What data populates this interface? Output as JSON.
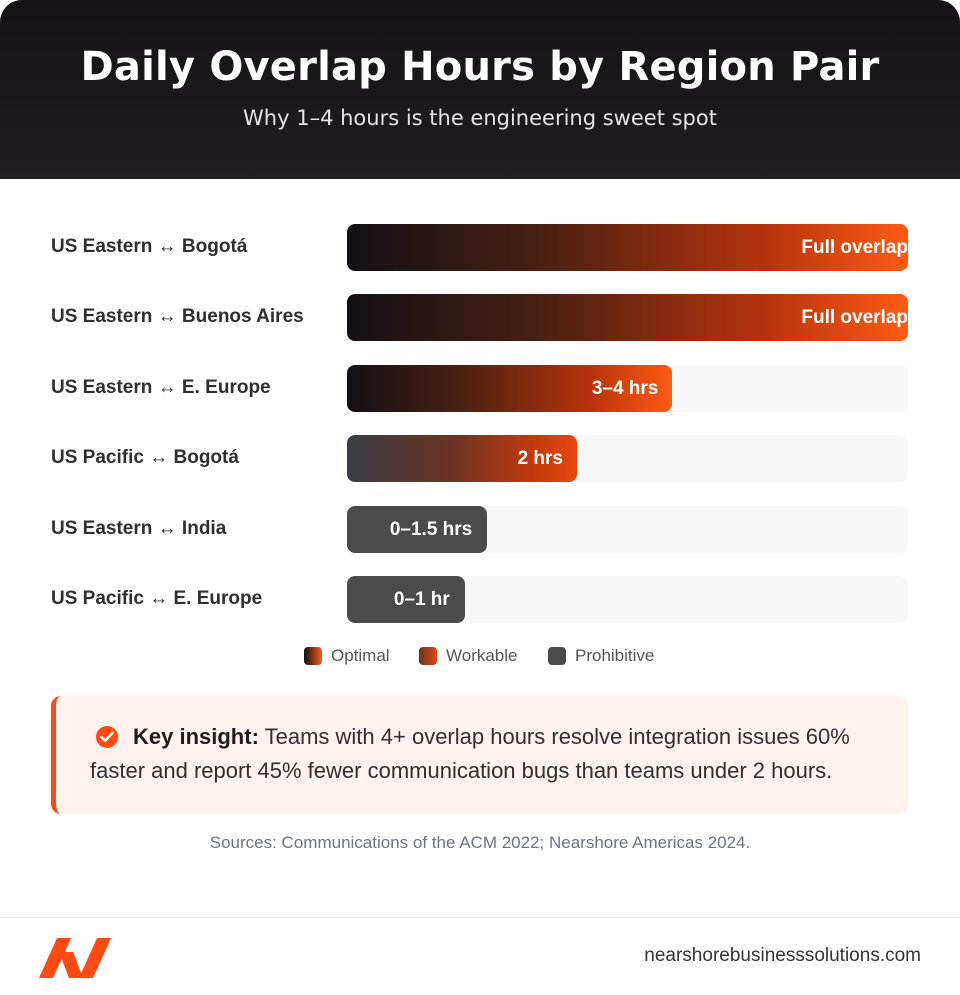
{
  "header": {
    "title": "Daily Overlap Hours by Region Pair",
    "subtitle": "Why 1–4 hours is the engineering sweet spot"
  },
  "chart_data": {
    "type": "bar",
    "orientation": "horizontal",
    "categories": [
      "US Eastern ↔ Bogotá",
      "US Eastern ↔ Buenos Aires",
      "US Eastern ↔ E. Europe",
      "US Pacific ↔ Bogotá",
      "US Eastern ↔ India",
      "US Pacific ↔ E. Europe"
    ],
    "values": [
      1.0,
      1.0,
      0.58,
      0.41,
      0.25,
      0.21
    ],
    "value_labels": [
      "Full overlap",
      "Full overlap",
      "3–4 hrs",
      "2 hrs",
      "0–1.5 hrs",
      "0–1 hr"
    ],
    "classes": [
      "optimal",
      "optimal",
      "optimal",
      "workable",
      "prohibitive",
      "prohibitive"
    ],
    "legend": [
      {
        "key": "optimal",
        "label": "Optimal"
      },
      {
        "key": "workable",
        "label": "Workable"
      },
      {
        "key": "prohibitive",
        "label": "Prohibitive"
      }
    ],
    "colors": {
      "optimal": "#ff5a14",
      "workable": "#e8460f",
      "prohibitive": "#4b4b4b",
      "track": "#f7f7f7"
    },
    "xlim": [
      0,
      1
    ],
    "grid": false,
    "legend_placement": "bottom-center"
  },
  "insight": {
    "icon": "check-circle-icon",
    "heading": "Key insight:",
    "text": " Teams with 4+ overlap hours resolve integration issues 60% faster and report 45% fewer communication bugs than teams under 2 hours."
  },
  "sources": "Sources: Communications of the ACM 2022; Nearshore Americas 2024.",
  "footer": {
    "logo": "brand-logo-icon",
    "domain": "nearshorebusinesssolutions.com",
    "accent": "#ff4a12"
  }
}
